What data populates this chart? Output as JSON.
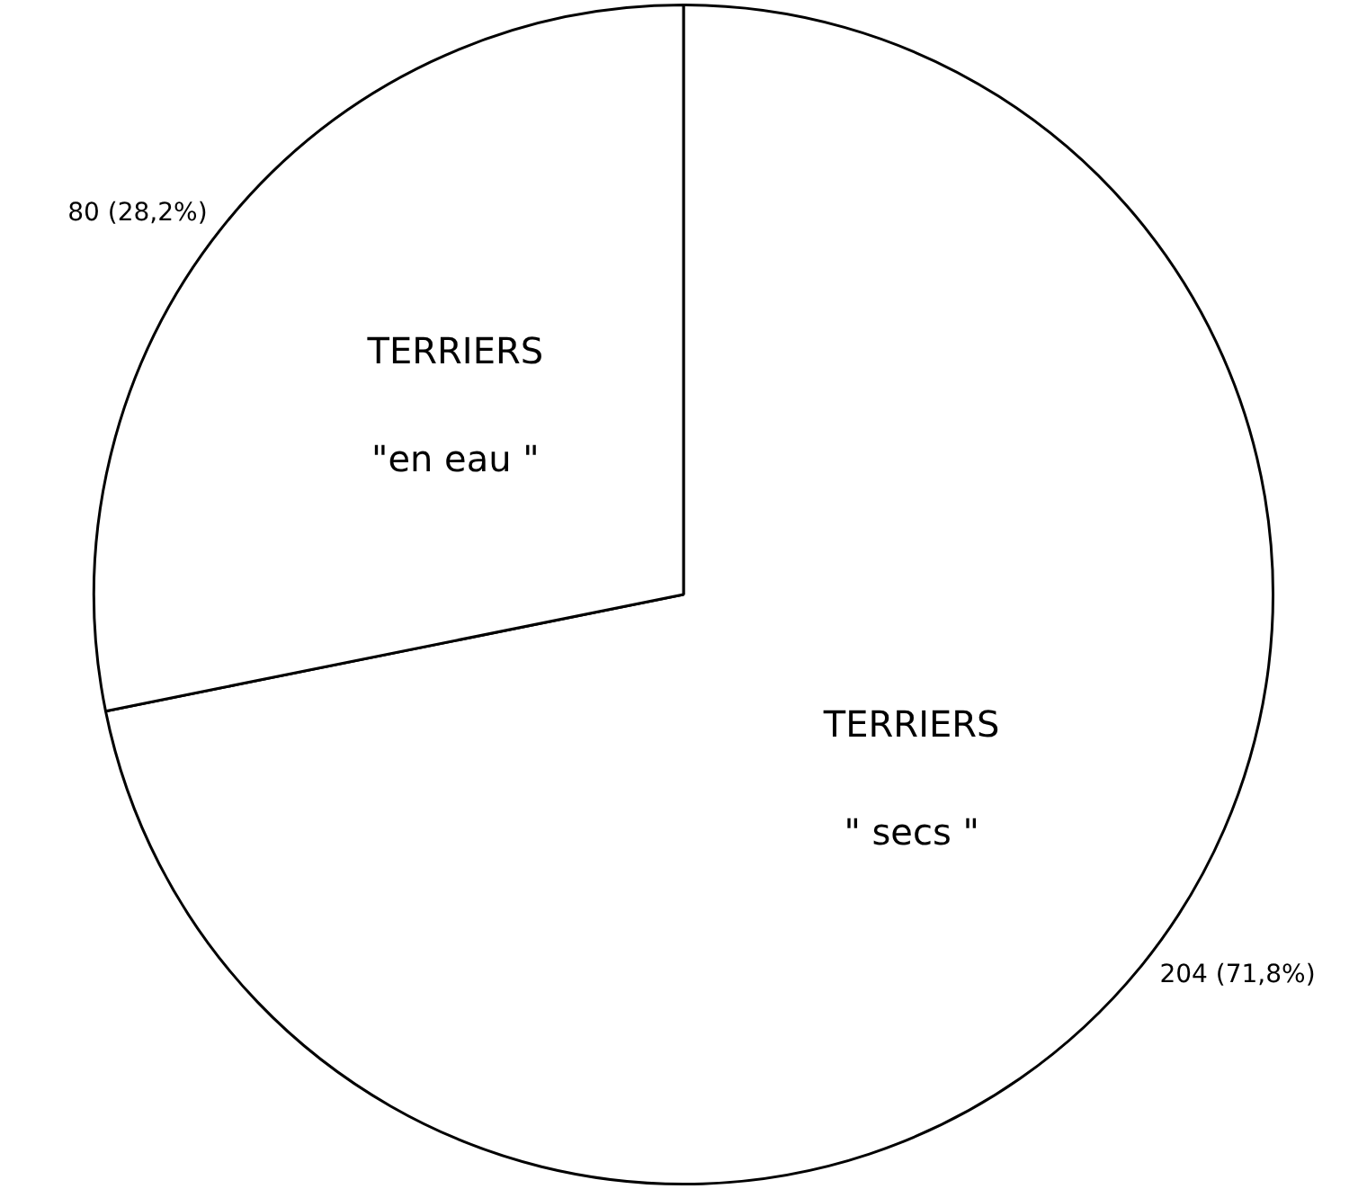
{
  "chart_data": {
    "type": "pie",
    "categories": [
      "TERRIERS\n\" secs \"",
      "TERRIERS\n\"en eau \""
    ],
    "values": [
      204,
      80
    ],
    "colors": [
      "#ffffff",
      "#ffffff"
    ],
    "value_labels": [
      "204 (71,8%)",
      "80 (28,2%)"
    ],
    "legend": false
  }
}
